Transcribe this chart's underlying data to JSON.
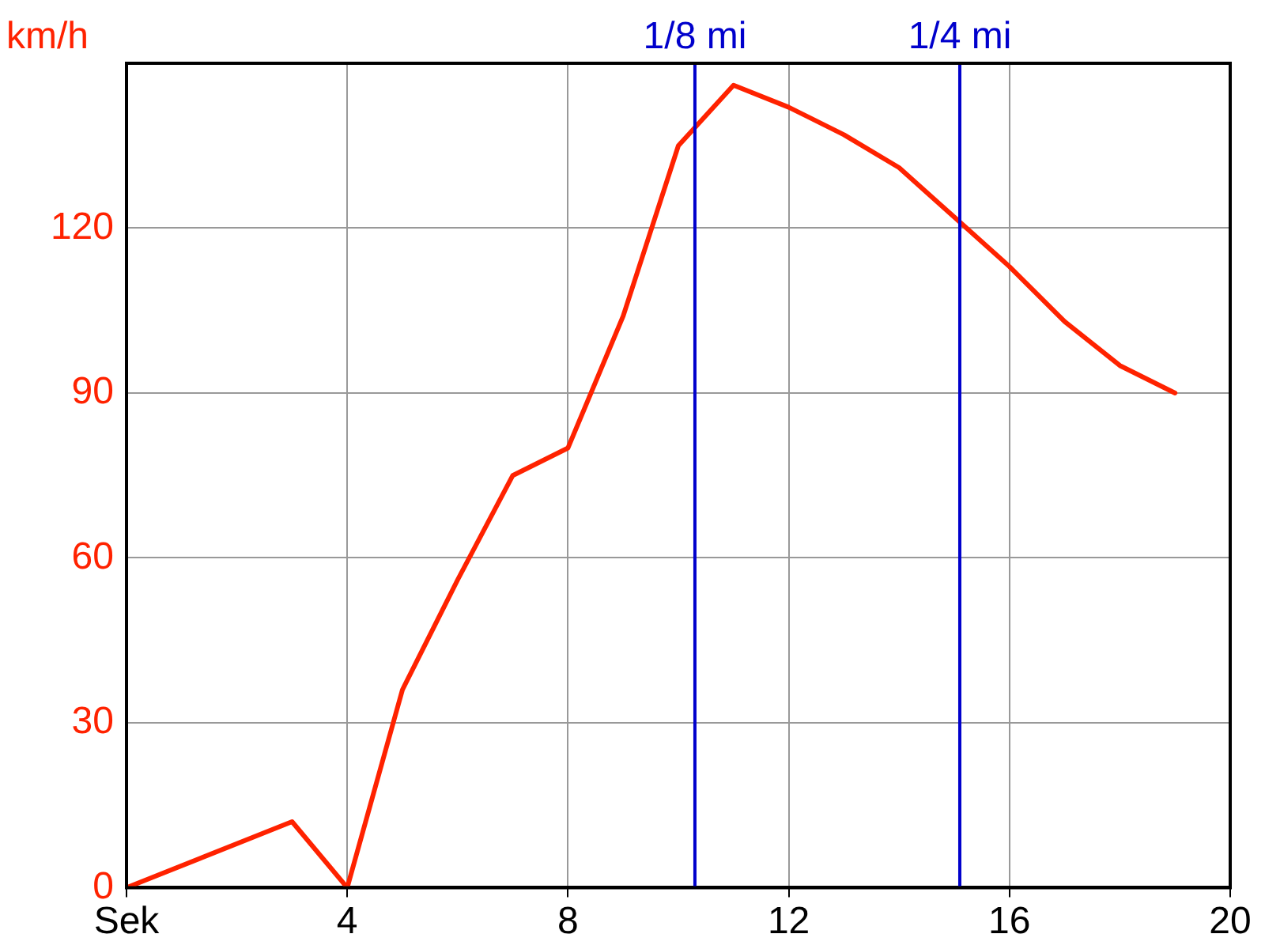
{
  "chart_data": {
    "type": "line",
    "ylabel": "km/h",
    "x": [
      0,
      3,
      4,
      5,
      6,
      7,
      8,
      9,
      10,
      11,
      12,
      13,
      14,
      15,
      16,
      17,
      18,
      19
    ],
    "series": [
      {
        "color": "#ff2200",
        "values": [
          0,
          12,
          0,
          36,
          56,
          75,
          80,
          104,
          135,
          146,
          142,
          137,
          131,
          122,
          113,
          103,
          95,
          90
        ]
      }
    ],
    "xlim": [
      0,
      20
    ],
    "xticks": [
      {
        "value": 0,
        "label": "Sek"
      },
      4,
      8,
      12,
      16,
      20
    ],
    "ylim": [
      0,
      150
    ],
    "yticks": [
      0,
      30,
      60,
      90,
      120
    ],
    "ref_lines": [
      {
        "axis": "x",
        "value": 10.3,
        "label": "1/8 mi",
        "color": "#0000cc"
      },
      {
        "axis": "x",
        "value": 15.1,
        "label": "1/4 mi",
        "color": "#0000cc"
      }
    ],
    "grid": true,
    "legend": false,
    "marker": "none",
    "line_style": "solid"
  }
}
